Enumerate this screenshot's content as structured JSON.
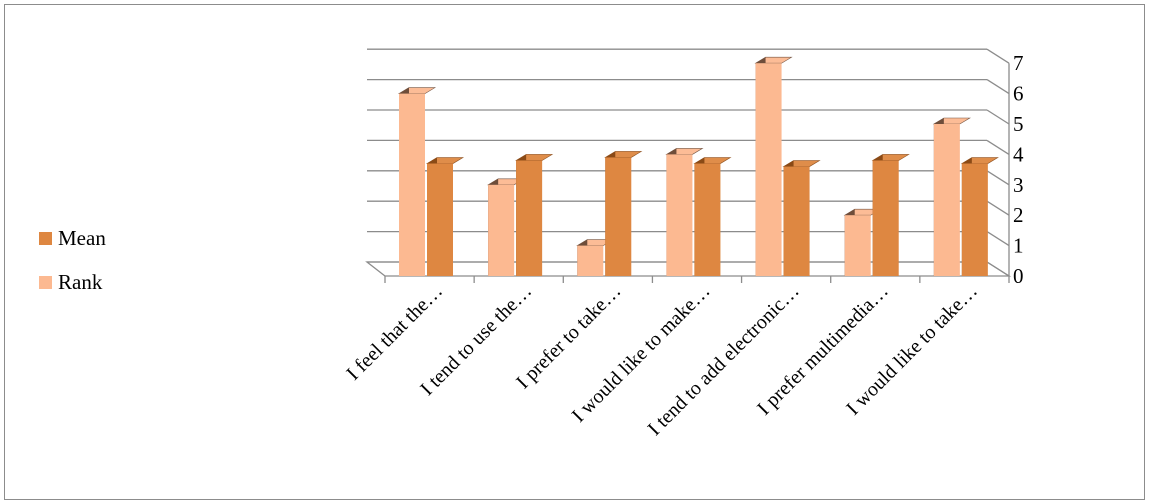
{
  "chart_data": {
    "type": "bar",
    "categories": [
      "I feel that the…",
      "I tend to use the…",
      "I prefer to take…",
      "I would like to make…",
      "I tend to add electronic…",
      "I prefer multimedia…",
      "I would like to take…"
    ],
    "series": [
      {
        "name": "Rank",
        "values": [
          6,
          3,
          1,
          4,
          7,
          2,
          5
        ],
        "color": "#fcb991",
        "side": "#6e4d3a"
      },
      {
        "name": "Mean",
        "values": [
          3.7,
          3.8,
          3.9,
          3.7,
          3.6,
          3.8,
          3.7
        ],
        "color": "#de8741",
        "side": "#8a4a16"
      }
    ],
    "ylim": [
      0,
      7
    ],
    "yticks": [
      "0",
      "1",
      "2",
      "3",
      "4",
      "5",
      "6",
      "7"
    ],
    "grid": true,
    "legend_position": "left",
    "legend": [
      {
        "name": "Mean",
        "color": "#de8741"
      },
      {
        "name": "Rank",
        "color": "#fcb991"
      }
    ]
  }
}
